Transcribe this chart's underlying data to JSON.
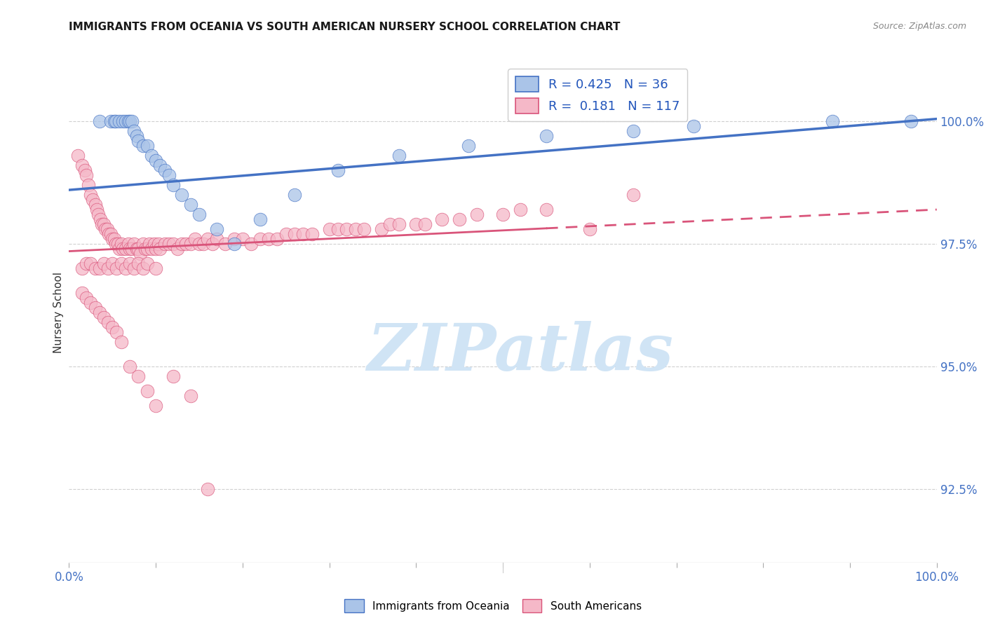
{
  "title": "IMMIGRANTS FROM OCEANIA VS SOUTH AMERICAN NURSERY SCHOOL CORRELATION CHART",
  "source": "Source: ZipAtlas.com",
  "ylabel": "Nursery School",
  "yticks": [
    92.5,
    95.0,
    97.5,
    100.0
  ],
  "ytick_labels": [
    "92.5%",
    "95.0%",
    "97.5%",
    "100.0%"
  ],
  "xrange": [
    0.0,
    1.0
  ],
  "yrange": [
    91.0,
    101.2
  ],
  "legend_oceania": "Immigrants from Oceania",
  "legend_south": "South Americans",
  "R_oceania": 0.425,
  "N_oceania": 36,
  "R_south": 0.181,
  "N_south": 117,
  "color_oceania": "#aac4e8",
  "color_south": "#f5b8c8",
  "line_color_oceania": "#4472c4",
  "line_color_south": "#d9547a",
  "oce_line_x0": 0.0,
  "oce_line_y0": 98.6,
  "oce_line_x1": 1.0,
  "oce_line_y1": 100.05,
  "south_line_x0": 0.0,
  "south_line_y0": 97.35,
  "south_line_solid_x1": 0.55,
  "south_line_dashed_x1": 1.0,
  "south_line_y1": 98.2,
  "background_color": "#ffffff",
  "grid_color": "#d0d0d0",
  "watermark_color": "#d0e4f5",
  "oceania_pts_x": [
    0.035,
    0.048,
    0.052,
    0.054,
    0.058,
    0.062,
    0.065,
    0.068,
    0.07,
    0.072,
    0.075,
    0.078,
    0.08,
    0.085,
    0.09,
    0.095,
    0.1,
    0.105,
    0.11,
    0.115,
    0.12,
    0.13,
    0.14,
    0.15,
    0.17,
    0.19,
    0.22,
    0.26,
    0.31,
    0.38,
    0.46,
    0.55,
    0.65,
    0.72,
    0.88,
    0.97
  ],
  "oceania_pts_y": [
    100.0,
    100.0,
    100.0,
    100.0,
    100.0,
    100.0,
    100.0,
    100.0,
    100.0,
    100.0,
    99.8,
    99.7,
    99.6,
    99.5,
    99.5,
    99.3,
    99.2,
    99.1,
    99.0,
    98.9,
    98.7,
    98.5,
    98.3,
    98.1,
    97.8,
    97.5,
    98.0,
    98.5,
    99.0,
    99.3,
    99.5,
    99.7,
    99.8,
    99.9,
    100.0,
    100.0
  ],
  "south_pts_x": [
    0.01,
    0.015,
    0.018,
    0.02,
    0.022,
    0.025,
    0.027,
    0.03,
    0.032,
    0.034,
    0.036,
    0.038,
    0.04,
    0.042,
    0.044,
    0.046,
    0.048,
    0.05,
    0.052,
    0.054,
    0.056,
    0.058,
    0.06,
    0.062,
    0.065,
    0.068,
    0.07,
    0.072,
    0.075,
    0.078,
    0.08,
    0.082,
    0.085,
    0.088,
    0.09,
    0.093,
    0.095,
    0.098,
    0.1,
    0.103,
    0.105,
    0.11,
    0.115,
    0.12,
    0.125,
    0.13,
    0.135,
    0.14,
    0.145,
    0.15,
    0.155,
    0.16,
    0.165,
    0.17,
    0.18,
    0.19,
    0.2,
    0.21,
    0.22,
    0.23,
    0.24,
    0.25,
    0.26,
    0.27,
    0.28,
    0.3,
    0.31,
    0.32,
    0.33,
    0.34,
    0.36,
    0.37,
    0.38,
    0.4,
    0.41,
    0.43,
    0.45,
    0.47,
    0.5,
    0.52,
    0.55,
    0.6,
    0.65,
    0.015,
    0.02,
    0.025,
    0.03,
    0.035,
    0.04,
    0.045,
    0.05,
    0.055,
    0.06,
    0.065,
    0.07,
    0.075,
    0.08,
    0.085,
    0.09,
    0.1,
    0.015,
    0.02,
    0.025,
    0.03,
    0.035,
    0.04,
    0.045,
    0.05,
    0.055,
    0.06,
    0.07,
    0.08,
    0.09,
    0.1,
    0.12,
    0.14,
    0.16
  ],
  "south_pts_y": [
    99.3,
    99.1,
    99.0,
    98.9,
    98.7,
    98.5,
    98.4,
    98.3,
    98.2,
    98.1,
    98.0,
    97.9,
    97.9,
    97.8,
    97.8,
    97.7,
    97.7,
    97.6,
    97.6,
    97.5,
    97.5,
    97.4,
    97.5,
    97.4,
    97.4,
    97.5,
    97.4,
    97.4,
    97.5,
    97.4,
    97.4,
    97.3,
    97.5,
    97.4,
    97.4,
    97.5,
    97.4,
    97.5,
    97.4,
    97.5,
    97.4,
    97.5,
    97.5,
    97.5,
    97.4,
    97.5,
    97.5,
    97.5,
    97.6,
    97.5,
    97.5,
    97.6,
    97.5,
    97.6,
    97.5,
    97.6,
    97.6,
    97.5,
    97.6,
    97.6,
    97.6,
    97.7,
    97.7,
    97.7,
    97.7,
    97.8,
    97.8,
    97.8,
    97.8,
    97.8,
    97.8,
    97.9,
    97.9,
    97.9,
    97.9,
    98.0,
    98.0,
    98.1,
    98.1,
    98.2,
    98.2,
    97.8,
    98.5,
    97.0,
    97.1,
    97.1,
    97.0,
    97.0,
    97.1,
    97.0,
    97.1,
    97.0,
    97.1,
    97.0,
    97.1,
    97.0,
    97.1,
    97.0,
    97.1,
    97.0,
    96.5,
    96.4,
    96.3,
    96.2,
    96.1,
    96.0,
    95.9,
    95.8,
    95.7,
    95.5,
    95.0,
    94.8,
    94.5,
    94.2,
    94.8,
    94.4,
    92.5
  ]
}
